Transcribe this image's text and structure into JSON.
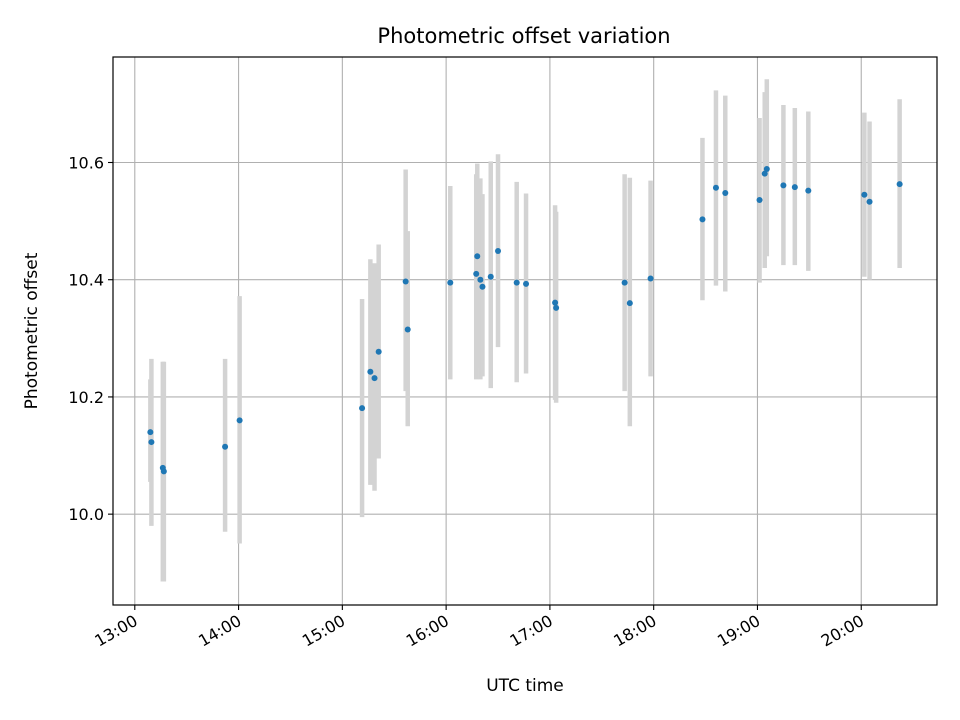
{
  "chart_data": {
    "type": "scatter",
    "title": "Photometric offset variation",
    "xlabel": "UTC time",
    "ylabel": "Photometric offset",
    "x_tick_labels": [
      "13:00",
      "14:00",
      "15:00",
      "16:00",
      "17:00",
      "18:00",
      "19:00",
      "20:00"
    ],
    "x_tick_values": [
      13,
      14,
      15,
      16,
      17,
      18,
      19,
      20
    ],
    "y_tick_labels": [
      "10.0",
      "10.2",
      "10.4",
      "10.6"
    ],
    "y_tick_values": [
      10.0,
      10.2,
      10.4,
      10.6
    ],
    "xlim": [
      12.79,
      20.73
    ],
    "ylim": [
      9.845,
      10.78
    ],
    "grid": true,
    "x_time_hours": [
      13.15,
      13.16,
      13.27,
      13.28,
      13.87,
      14.01,
      15.19,
      15.27,
      15.31,
      15.35,
      15.61,
      15.63,
      16.04,
      16.29,
      16.3,
      16.33,
      16.35,
      16.43,
      16.5,
      16.68,
      16.77,
      17.05,
      17.06,
      17.72,
      17.77,
      17.97,
      18.47,
      18.6,
      18.69,
      19.02,
      19.07,
      19.09,
      19.25,
      19.36,
      19.49,
      20.03,
      20.08,
      20.37
    ],
    "y_offset": [
      10.14,
      10.123,
      10.079,
      10.073,
      10.115,
      10.16,
      10.181,
      10.243,
      10.232,
      10.277,
      10.397,
      10.315,
      10.395,
      10.41,
      10.44,
      10.4,
      10.388,
      10.405,
      10.449,
      10.395,
      10.393,
      10.361,
      10.352,
      10.395,
      10.36,
      10.402,
      10.503,
      10.557,
      10.548,
      10.536,
      10.581,
      10.589,
      10.561,
      10.558,
      10.552,
      10.545,
      10.533,
      10.563
    ],
    "y_error_low": [
      10.055,
      9.98,
      9.885,
      9.885,
      9.97,
      9.95,
      9.995,
      10.05,
      10.04,
      10.095,
      10.21,
      10.15,
      10.23,
      10.23,
      10.25,
      10.23,
      10.235,
      10.215,
      10.285,
      10.225,
      10.24,
      10.195,
      10.19,
      10.21,
      10.15,
      10.235,
      10.365,
      10.39,
      10.38,
      10.395,
      10.42,
      10.44,
      10.425,
      10.425,
      10.415,
      10.405,
      10.4,
      10.42
    ],
    "y_error_high": [
      10.23,
      10.265,
      10.26,
      10.26,
      10.265,
      10.372,
      10.367,
      10.435,
      10.428,
      10.46,
      10.588,
      10.483,
      10.56,
      10.58,
      10.598,
      10.573,
      10.546,
      10.602,
      10.614,
      10.567,
      10.547,
      10.527,
      10.516,
      10.58,
      10.574,
      10.569,
      10.642,
      10.723,
      10.714,
      10.676,
      10.72,
      10.742,
      10.698,
      10.693,
      10.687,
      10.685,
      10.67,
      10.708
    ]
  }
}
